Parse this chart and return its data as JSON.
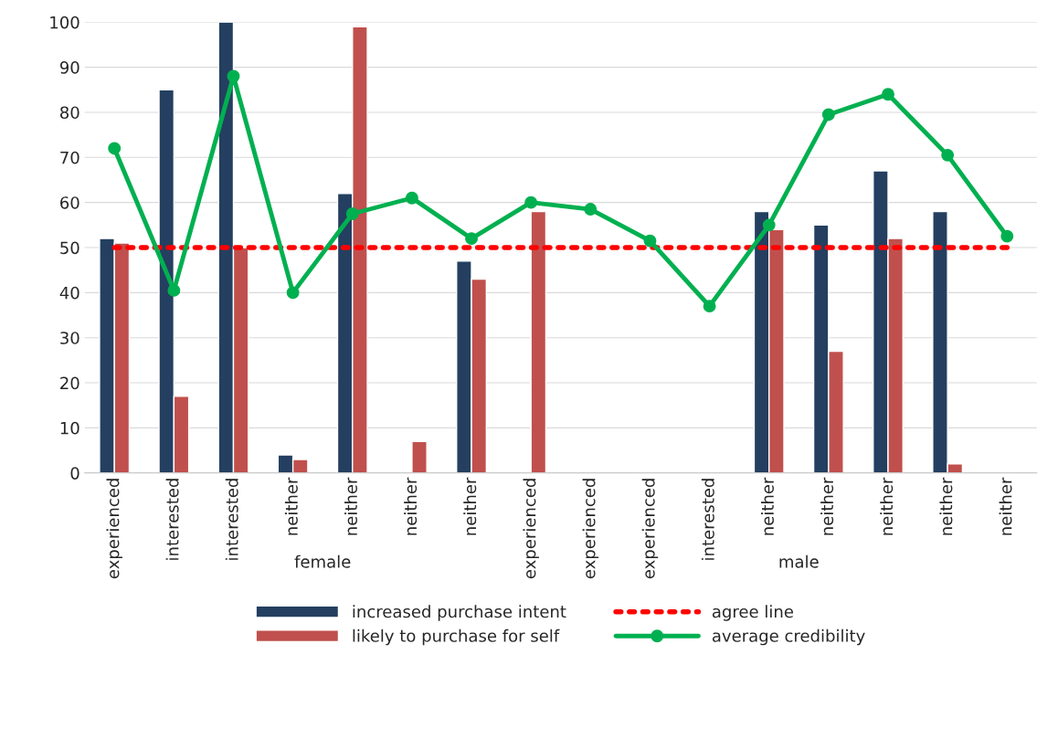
{
  "chart_data": {
    "type": "bar",
    "categories": [
      "experienced",
      "interested",
      "interested",
      "neither",
      "neither",
      "neither",
      "neither",
      "experienced",
      "experienced",
      "experienced",
      "interested",
      "neither",
      "neither",
      "neither",
      "neither",
      "neither"
    ],
    "series": [
      {
        "name": "increased purchase intent",
        "color": "#243f60",
        "values": [
          52,
          85,
          100,
          4,
          62,
          null,
          47,
          null,
          null,
          null,
          null,
          58,
          55,
          67,
          58,
          null
        ]
      },
      {
        "name": "likely to purchase for self",
        "color": "#c0504d",
        "values": [
          51,
          17,
          50,
          3,
          99,
          7,
          43,
          58,
          null,
          null,
          null,
          54,
          27,
          52,
          2,
          null
        ]
      },
      {
        "name": "agree line",
        "type": "line",
        "color": "#ff0000",
        "line_style": "dotted",
        "marker": "none",
        "values": [
          50,
          50,
          50,
          50,
          50,
          50,
          50,
          50,
          50,
          50,
          50,
          50,
          50,
          50,
          50,
          50
        ]
      },
      {
        "name": "average credibility",
        "type": "line",
        "color": "#00b050",
        "line_style": "solid",
        "marker": "circle",
        "values": [
          72,
          40.5,
          88,
          40,
          57.5,
          61,
          52,
          60,
          58.5,
          51.5,
          37,
          55,
          79.5,
          84,
          70.5,
          52.5
        ]
      }
    ],
    "annotations": [
      "female",
      "male"
    ],
    "ylim": [
      0,
      100
    ],
    "yticks": [
      0,
      10,
      20,
      30,
      40,
      50,
      60,
      70,
      80,
      90,
      100
    ],
    "grid": "y",
    "legend": "bottom"
  }
}
